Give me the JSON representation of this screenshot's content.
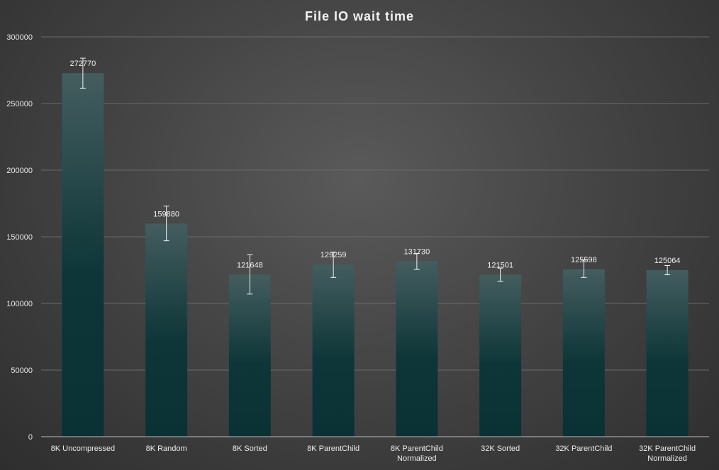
{
  "chart_data": {
    "type": "bar",
    "title": "File IO wait time",
    "categories": [
      [
        "8K Uncompressed"
      ],
      [
        "8K Random"
      ],
      [
        "8K Sorted"
      ],
      [
        "8K ParentChild"
      ],
      [
        "8K ParentChild",
        "Normalized"
      ],
      [
        "32K Sorted"
      ],
      [
        "32K ParentChild"
      ],
      [
        "32K ParentChild",
        "Normalized"
      ]
    ],
    "values": [
      272770,
      159880,
      121648,
      129259,
      131730,
      121501,
      125598,
      125064
    ],
    "value_labels": [
      "272770",
      "159880",
      "121648",
      "129259",
      "131730",
      "121501",
      "125598",
      "125064"
    ],
    "error_bars": [
      [
        261500,
        284000
      ],
      [
        147000,
        173000
      ],
      [
        107000,
        136500
      ],
      [
        119500,
        138500
      ],
      [
        125500,
        137500
      ],
      [
        116500,
        126500
      ],
      [
        119500,
        132500
      ],
      [
        121500,
        128500
      ]
    ],
    "ylim": [
      0,
      300000
    ],
    "yticks": [
      0,
      50000,
      100000,
      150000,
      200000,
      250000,
      300000
    ],
    "ytick_labels": [
      "0",
      "50000",
      "100000",
      "150000",
      "200000",
      "250000",
      "300000"
    ],
    "xlabel": "",
    "ylabel": "",
    "grid": true,
    "legend": "none",
    "colors": {
      "bar_top": "#415a5c",
      "bar_bottom": "#0b3436",
      "error_bar": "#f2f2f2",
      "gridline": "#6a6a6a"
    }
  }
}
